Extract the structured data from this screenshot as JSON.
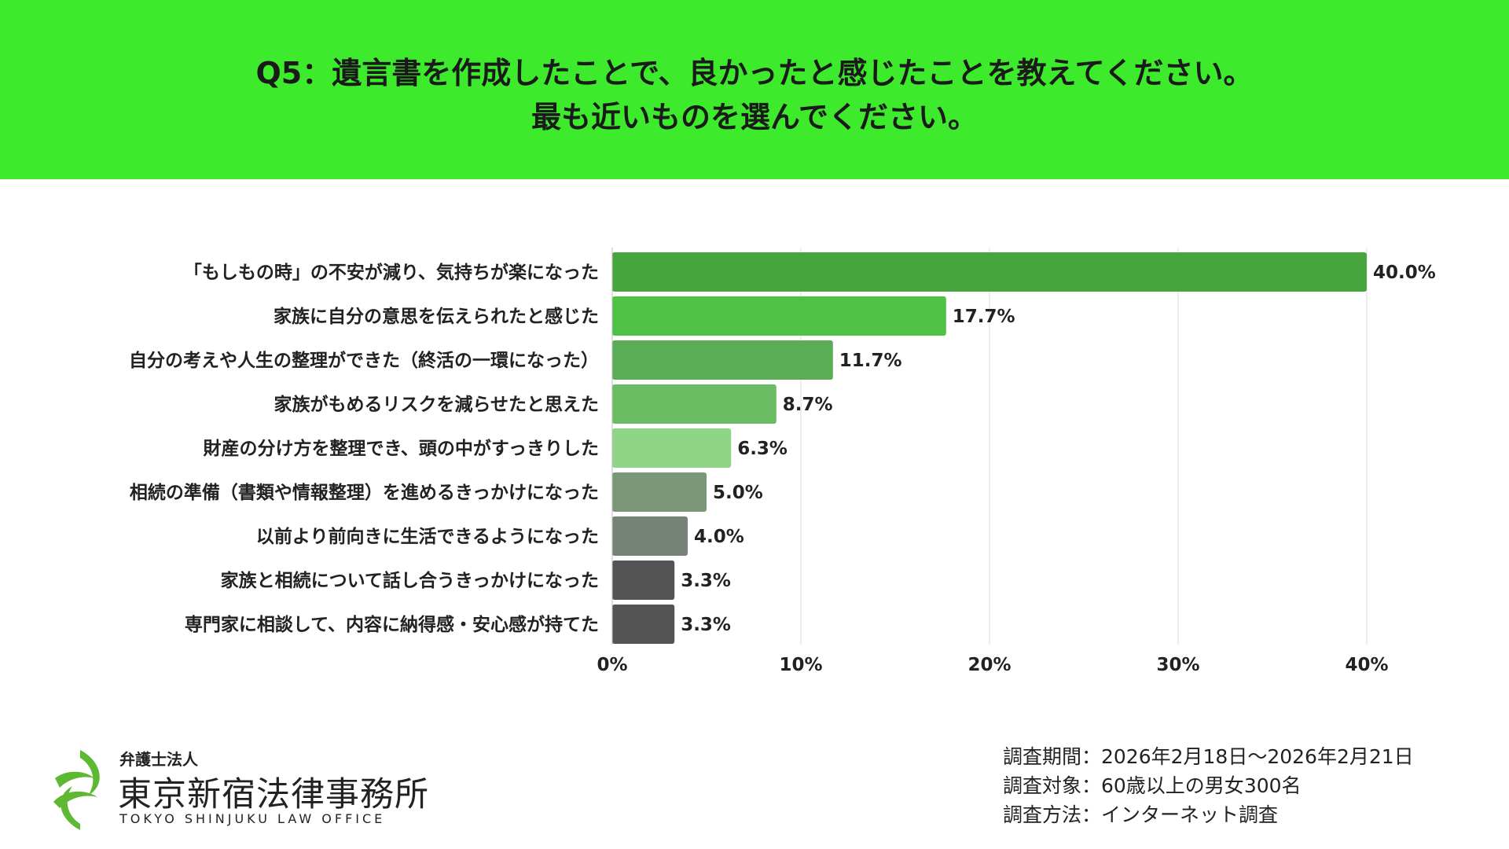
{
  "header": {
    "title_line1": "Q5：遺言書を作成したことで、良かったと感じたことを教えてください。",
    "title_line2": "最も近いものを選んでください。",
    "bg_color": "#3dea2c"
  },
  "chart_data": {
    "type": "bar",
    "orientation": "horizontal",
    "categories": [
      "「もしもの時」の不安が減り、気持ちが楽になった",
      "家族に自分の意思を伝えられたと感じた",
      "自分の考えや人生の整理ができた（終活の一環になった）",
      "家族がもめるリスクを減らせたと思えた",
      "財産の分け方を整理でき、頭の中がすっきりした",
      "相続の準備（書類や情報整理）を進めるきっかけになった",
      "以前より前向きに生活できるようになった",
      "家族と相続について話し合うきっかけになった",
      "専門家に相談して、内容に納得感・安心感が持てた"
    ],
    "values": [
      40.0,
      17.7,
      11.7,
      8.7,
      6.3,
      5.0,
      4.0,
      3.3,
      3.3
    ],
    "value_labels": [
      "40.0%",
      "17.7%",
      "11.7%",
      "8.7%",
      "6.3%",
      "5.0%",
      "4.0%",
      "3.3%",
      "3.3%"
    ],
    "bar_colors": [
      "#46a63d",
      "#4fc246",
      "#5aad54",
      "#6abd62",
      "#8ed585",
      "#7a9878",
      "#768276",
      "#545454",
      "#545454"
    ],
    "xlim": [
      0,
      40
    ],
    "xticks": [
      0,
      10,
      20,
      30,
      40
    ],
    "xtick_labels": [
      "0%",
      "10%",
      "20%",
      "30%",
      "40%"
    ],
    "grid": true,
    "title": "",
    "xlabel": "",
    "ylabel": ""
  },
  "footer": {
    "logo_sub": "弁護士法人",
    "logo_name": "東京新宿法律事務所",
    "logo_en": "TOKYO SHINJUKU LAW OFFICE",
    "logo_icon": "law-office-leaf-logo",
    "logo_color": "#5db832",
    "survey_period": "調査期間：2026年2月18日～2026年2月21日",
    "survey_target": "調査対象：60歳以上の男女300名",
    "survey_method": "調査方法：インターネット調査"
  }
}
